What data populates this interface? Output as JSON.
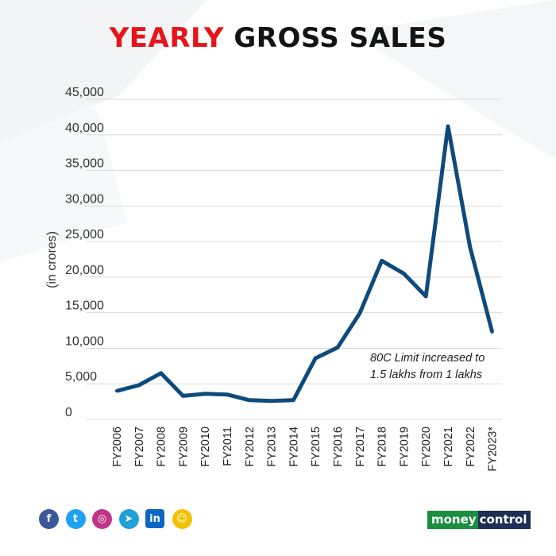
{
  "title": {
    "highlight": "YEARLY",
    "rest": "GROSS SALES"
  },
  "annotation": {
    "line1": "80C Limit increased to",
    "line2": "1.5 lakhs from 1 lakhs"
  },
  "social_icons": [
    {
      "name": "facebook-icon",
      "glyph": "f",
      "color": "#3b5998"
    },
    {
      "name": "twitter-icon",
      "glyph": "t",
      "color": "#1da1f2"
    },
    {
      "name": "instagram-icon",
      "glyph": "◎",
      "color": "#c13584"
    },
    {
      "name": "telegram-icon",
      "glyph": "➤",
      "color": "#229ed9"
    },
    {
      "name": "linkedin-icon",
      "glyph": "in",
      "color": "#0a66c2"
    },
    {
      "name": "snapchat-icon",
      "glyph": "☺",
      "color": "#f2c200"
    }
  ],
  "brand": {
    "part1": "money",
    "part2": "control"
  },
  "colors": {
    "line": "#0f4a7c",
    "title_highlight": "#e5151b",
    "grid": "#d9d9d9"
  },
  "chart_data": {
    "type": "line",
    "title": "YEARLY GROSS SALES",
    "ylabel": "(in crores)",
    "xlabel": "",
    "ylim": [
      0,
      45000
    ],
    "yticks": [
      0,
      5000,
      10000,
      15000,
      20000,
      25000,
      30000,
      35000,
      40000,
      45000
    ],
    "ytick_labels": [
      "0",
      "5,000",
      "10,000",
      "15,000",
      "20,000",
      "25,000",
      "30,000",
      "35,000",
      "40,000",
      "45,000"
    ],
    "grid": true,
    "categories": [
      "FY2006",
      "FY2007",
      "FY2008",
      "FY2009",
      "FY2010",
      "FY2011",
      "FY2012",
      "FY2013",
      "FY2014",
      "FY2015",
      "FY2016",
      "FY2017",
      "FY2018",
      "FY2019",
      "FY2020",
      "FY2021",
      "FY2022",
      "FY2023*"
    ],
    "series": [
      {
        "values": [
          4000,
          4800,
          6500,
          3300,
          3600,
          3500,
          2700,
          2600,
          2700,
          8600,
          10100,
          14900,
          22300,
          20500,
          17300,
          41200,
          24200,
          12300
        ]
      }
    ]
  }
}
